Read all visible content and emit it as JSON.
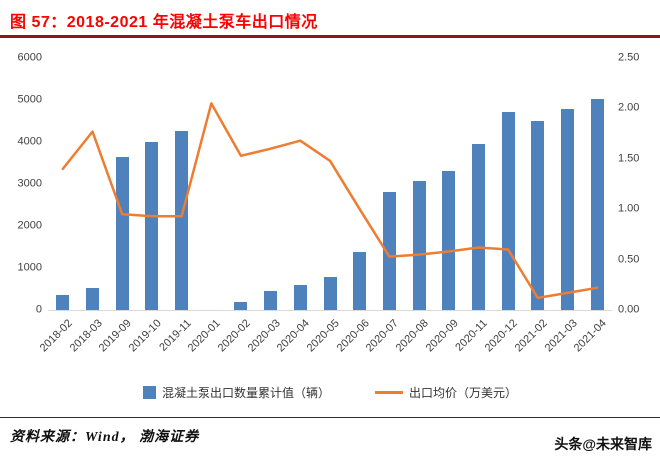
{
  "page": {
    "title": "图 57：2018-2021 年混凝土泵车出口情况",
    "source": "资料来源：Wind， 渤海证券",
    "watermark": "头条@未来智库"
  },
  "colors": {
    "title_red": "#fe0000",
    "rule_dark_red": "#8b1a1a",
    "bar_blue": "#4f81bd",
    "line_orange": "#ed7d31",
    "axis_text": "#404040"
  },
  "chart_data": {
    "type": "combo",
    "title": "图 57：2018-2021 年混凝土泵车出口情况",
    "categories": [
      "2018-02",
      "2018-03",
      "2019-09",
      "2019-10",
      "2019-11",
      "2020-01",
      "2020-02",
      "2020-03",
      "2020-04",
      "2020-05",
      "2020-06",
      "2020-07",
      "2020-08",
      "2020-09",
      "2020-11",
      "2020-12",
      "2021-02",
      "2021-03",
      "2021-04"
    ],
    "series": [
      {
        "name": "混凝土泵出口数量累计值（辆）",
        "type": "bar",
        "axis": "left",
        "values": [
          350,
          520,
          3650,
          4000,
          4270,
          null,
          180,
          450,
          600,
          780,
          1380,
          2800,
          3080,
          3300,
          3950,
          4720,
          4500,
          4780,
          5030
        ]
      },
      {
        "name": "出口均价（万美元）",
        "type": "line",
        "axis": "right",
        "values": [
          1.4,
          1.77,
          0.95,
          0.93,
          0.93,
          2.05,
          1.53,
          1.6,
          1.68,
          1.48,
          1.0,
          0.53,
          0.55,
          0.58,
          0.62,
          0.6,
          0.12,
          0.17,
          0.22
        ]
      }
    ],
    "left_axis": {
      "min": 0,
      "max": 6000,
      "ticks": [
        0,
        1000,
        2000,
        3000,
        4000,
        5000,
        6000
      ]
    },
    "right_axis": {
      "min": 0,
      "max": 2.5,
      "ticks": [
        "0.00",
        "0.50",
        "1.00",
        "1.50",
        "2.00",
        "2.50"
      ]
    },
    "grid": false,
    "legend_position": "bottom"
  }
}
